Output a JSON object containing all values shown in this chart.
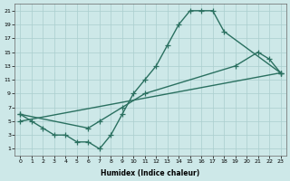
{
  "xlabel": "Humidex (Indice chaleur)",
  "xlim": [
    -0.5,
    23.5
  ],
  "ylim": [
    0,
    22
  ],
  "xticks": [
    0,
    1,
    2,
    3,
    4,
    5,
    6,
    7,
    8,
    9,
    10,
    11,
    12,
    13,
    14,
    15,
    16,
    17,
    18,
    19,
    20,
    21,
    22,
    23
  ],
  "yticks": [
    1,
    3,
    5,
    7,
    9,
    11,
    13,
    15,
    17,
    19,
    21
  ],
  "bg_color": "#cde8e8",
  "grid_color": "#aacece",
  "line_color": "#2a7060",
  "line1_x": [
    0,
    1,
    2,
    3,
    4,
    5,
    6,
    7,
    8,
    9,
    10,
    11,
    12,
    13,
    14,
    15,
    16,
    17,
    18,
    23
  ],
  "line1_y": [
    6,
    5,
    4,
    3,
    3,
    2,
    2,
    1,
    3,
    6,
    9,
    11,
    13,
    16,
    19,
    21,
    21,
    21,
    18,
    12
  ],
  "line2_x": [
    0,
    23
  ],
  "line2_y": [
    5,
    12
  ],
  "line3_x": [
    0,
    6,
    7,
    9,
    11,
    19,
    21,
    22,
    23
  ],
  "line3_y": [
    6,
    4,
    5,
    7,
    9,
    13,
    15,
    14,
    12
  ],
  "marker": "+",
  "markersize": 4,
  "linewidth": 1.0
}
